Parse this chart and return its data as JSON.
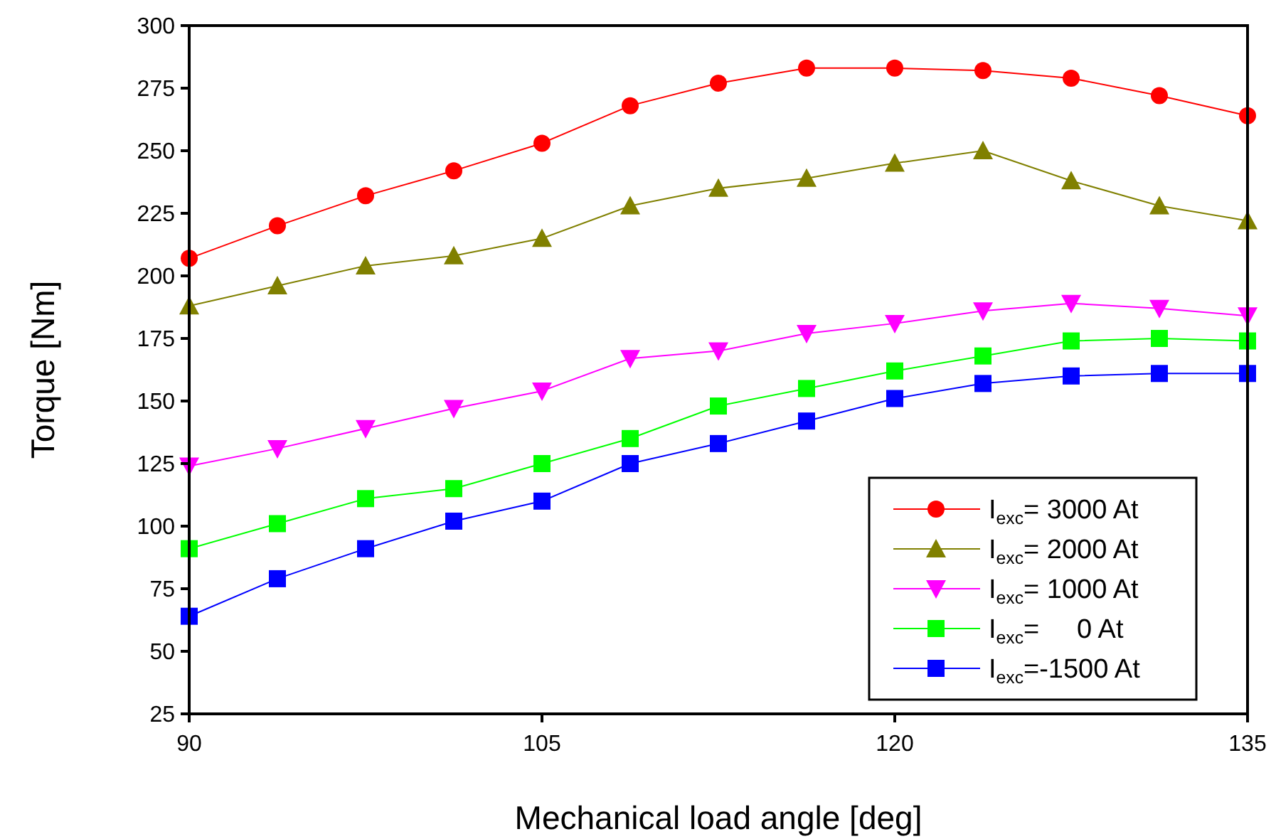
{
  "chart_data": {
    "type": "line",
    "xlabel": "Mechanical load angle [deg]",
    "ylabel": "Torque [Nm]",
    "x": [
      90,
      93.75,
      97.5,
      101.25,
      105,
      108.75,
      112.5,
      116.25,
      120,
      123.75,
      127.5,
      131.25,
      135
    ],
    "xlim": [
      90,
      135
    ],
    "xticks": [
      90,
      105,
      120,
      135
    ],
    "ylim": [
      25,
      300
    ],
    "yticks": [
      25,
      50,
      75,
      100,
      125,
      150,
      175,
      200,
      225,
      250,
      275,
      300
    ],
    "grid": false,
    "legend": "bottom right",
    "series": [
      {
        "name": "I$_{exc}$= 3000 At",
        "color": "#ff0000",
        "marker": "circle",
        "values": [
          207,
          220,
          232,
          242,
          253,
          268,
          277,
          283,
          283,
          282,
          279,
          272,
          264
        ]
      },
      {
        "name": "I$_{exc}$= 2000 At",
        "color": "#808000",
        "marker": "triangle",
        "values": [
          188,
          196,
          204,
          208,
          215,
          228,
          235,
          239,
          245,
          250,
          238,
          228,
          222
        ]
      },
      {
        "name": "I$_{exc}$= 1000 At",
        "color": "#ff00ff",
        "marker": "triangle-down",
        "values": [
          124,
          131,
          139,
          147,
          154,
          167,
          170,
          177,
          181,
          186,
          189,
          187,
          184
        ]
      },
      {
        "name": "I$_{exc}$=     0 At",
        "color": "#00ff00",
        "marker": "square",
        "values": [
          91,
          101,
          111,
          115,
          125,
          135,
          148,
          155,
          162,
          168,
          174,
          175,
          174
        ]
      },
      {
        "name": "I$_{exc}$=-1500 At",
        "color": "#0000ff",
        "marker": "square",
        "values": [
          64,
          79,
          91,
          102,
          110,
          125,
          133,
          142,
          151,
          157,
          160,
          161,
          161
        ]
      }
    ]
  }
}
